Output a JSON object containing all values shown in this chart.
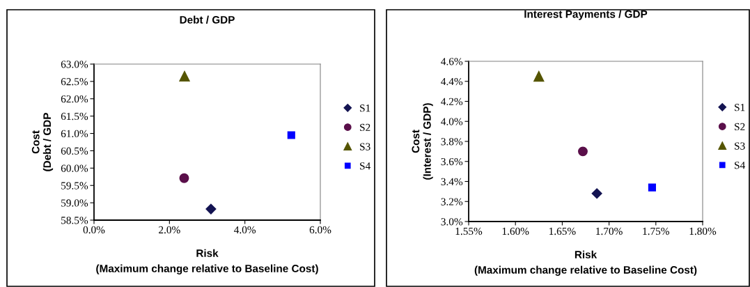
{
  "chart_data": [
    {
      "type": "scatter",
      "title": "Debt / GDP",
      "xlabel": "Risk\n(Maximum change relative to Baseline Cost)",
      "ylabel": "Cost\n(Debt / GDP",
      "xlim": [
        0,
        6
      ],
      "xticks": [
        {
          "value": 0,
          "label": "0.0%"
        },
        {
          "value": 2,
          "label": "2.0%"
        },
        {
          "value": 4,
          "label": "4.0%"
        },
        {
          "value": 6,
          "label": "6.0%"
        }
      ],
      "ylim": [
        58.5,
        63
      ],
      "yticks": [
        {
          "value": 58.5,
          "label": "58.5%"
        },
        {
          "value": 59,
          "label": "59.0%"
        },
        {
          "value": 59.5,
          "label": "59.5%"
        },
        {
          "value": 60,
          "label": "60.0%"
        },
        {
          "value": 60.5,
          "label": "60.5%"
        },
        {
          "value": 61,
          "label": "61.0%"
        },
        {
          "value": 61.5,
          "label": "61.5%"
        },
        {
          "value": 62,
          "label": "62.0%"
        },
        {
          "value": 62.5,
          "label": "62.5%"
        },
        {
          "value": 63,
          "label": "63.0%"
        }
      ],
      "grid": false,
      "legend": "right",
      "series": [
        {
          "name": "S1",
          "color": "#141452",
          "marker": "diamond",
          "x": [
            3.1
          ],
          "values": [
            58.82
          ]
        },
        {
          "name": "S2",
          "color": "#5a0f4a",
          "marker": "circle",
          "x": [
            2.39
          ],
          "values": [
            59.71
          ]
        },
        {
          "name": "S3",
          "color": "#555500",
          "marker": "triangle",
          "x": [
            2.4
          ],
          "values": [
            62.65
          ]
        },
        {
          "name": "S4",
          "color": "#0000ff",
          "marker": "square",
          "x": [
            5.23
          ],
          "values": [
            60.95
          ]
        }
      ]
    },
    {
      "type": "scatter",
      "title": "Interest Payments / GDP",
      "xlabel": "Risk\n(Maximum change relative to Baseline Cost)",
      "ylabel": "Cost\n(Interest / GDP)",
      "xlim": [
        1.55,
        1.8
      ],
      "xticks": [
        {
          "value": 1.55,
          "label": "1.55%"
        },
        {
          "value": 1.6,
          "label": "1.60%"
        },
        {
          "value": 1.65,
          "label": "1.65%"
        },
        {
          "value": 1.7,
          "label": "1.70%"
        },
        {
          "value": 1.75,
          "label": "1.75%"
        },
        {
          "value": 1.8,
          "label": "1.80%"
        }
      ],
      "ylim": [
        3.0,
        4.6
      ],
      "yticks": [
        {
          "value": 3.0,
          "label": "3.0%"
        },
        {
          "value": 3.2,
          "label": "3.2%"
        },
        {
          "value": 3.4,
          "label": "3.4%"
        },
        {
          "value": 3.6,
          "label": "3.6%"
        },
        {
          "value": 3.8,
          "label": "3.8%"
        },
        {
          "value": 4.0,
          "label": "4.0%"
        },
        {
          "value": 4.2,
          "label": "4.2%"
        },
        {
          "value": 4.4,
          "label": "4.4%"
        },
        {
          "value": 4.6,
          "label": "4.6%"
        }
      ],
      "grid": false,
      "legend": "right",
      "series": [
        {
          "name": "S1",
          "color": "#141452",
          "marker": "diamond",
          "x": [
            1.687
          ],
          "values": [
            3.28
          ]
        },
        {
          "name": "S2",
          "color": "#5a0f4a",
          "marker": "circle",
          "x": [
            1.672
          ],
          "values": [
            3.7
          ]
        },
        {
          "name": "S3",
          "color": "#555500",
          "marker": "triangle",
          "x": [
            1.625
          ],
          "values": [
            4.45
          ]
        },
        {
          "name": "S4",
          "color": "#0000ff",
          "marker": "square",
          "x": [
            1.746
          ],
          "values": [
            3.34
          ]
        }
      ]
    }
  ]
}
